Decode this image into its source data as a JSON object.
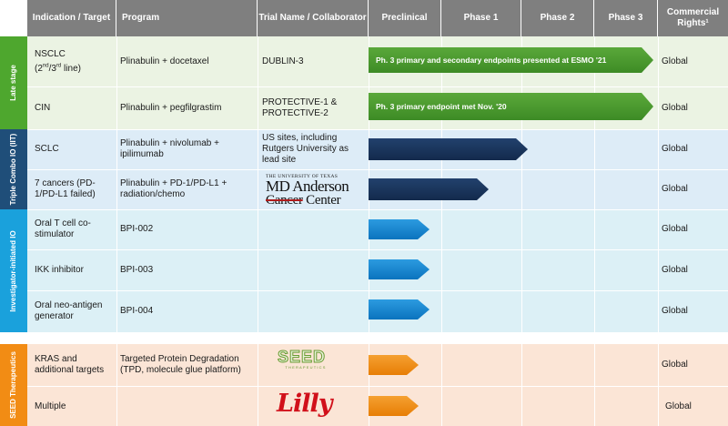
{
  "header": {
    "indication": "Indication / Target",
    "program": "Program",
    "trial": "Trial Name / Collaborator",
    "preclinical": "Preclinical",
    "phase1": "Phase 1",
    "phase2": "Phase 2",
    "phase3": "Phase 3",
    "rights": "Commercial Rights¹"
  },
  "groups": {
    "late": "Late stage",
    "triple": "Triple Combo IO (IIT)",
    "investigator": "Investigator-initiated IO",
    "seed": "SEED Therapeutics"
  },
  "rows": [
    {
      "indication": "NSCLC",
      "indication_sub": "(2nd/3rd line)",
      "program": "Plinabulin + docetaxel",
      "trial": "DUBLIN-3",
      "arrow": "Ph. 3 primary and secondary endpoints presented at ESMO '21",
      "rights": "Global"
    },
    {
      "indication": "CIN",
      "program": "Plinabulin + pegfilgrastim",
      "trial": "PROTECTIVE-1 & PROTECTIVE-2",
      "arrow": "Ph. 3 primary endpoint met Nov. '20",
      "rights": "Global"
    },
    {
      "indication": "SCLC",
      "program": "Plinabulin + nivolumab + ipilimumab",
      "trial": "US sites, including Rutgers University as lead site",
      "rights": "Global"
    },
    {
      "indication": "7 cancers (PD-1/PD-L1 failed)",
      "program": "Plinabulin + PD-1/PD-L1 + radiation/chemo",
      "rights": "Global"
    },
    {
      "indication": "Oral T cell co-stimulator",
      "program": "BPI-002",
      "rights": "Global"
    },
    {
      "indication": "IKK inhibitor",
      "program": "BPI-003",
      "rights": "Global"
    },
    {
      "indication": "Oral neo-antigen generator",
      "program": "BPI-004",
      "rights": "Global"
    },
    {
      "indication": "KRAS and additional targets",
      "program": "Targeted Protein Degradation (TPD, molecule glue platform)",
      "rights": "Global"
    },
    {
      "indication": "Multiple",
      "rights": "Global"
    }
  ],
  "logos": {
    "mda_small": "THE UNIVERSITY OF TEXAS",
    "mda_line1": "MD Anderson",
    "mda_line2a": "Cancer",
    "mda_line2b": " Center",
    "seed_word": "SEED",
    "seed_sub": "THERAPEUTICS",
    "lilly": "Lilly"
  },
  "progress": [
    {
      "row": 0,
      "stage_fraction": 0.98
    },
    {
      "row": 1,
      "stage_fraction": 0.98
    },
    {
      "row": 2,
      "stage_fraction": 0.44
    },
    {
      "row": 3,
      "stage_fraction": 0.34
    },
    {
      "row": 4,
      "stage_fraction": 0.17
    },
    {
      "row": 5,
      "stage_fraction": 0.17
    },
    {
      "row": 6,
      "stage_fraction": 0.17
    },
    {
      "row": 7,
      "stage_fraction": 0.14
    },
    {
      "row": 8,
      "stage_fraction": 0.14
    }
  ],
  "colors": {
    "header": "#7f7f7f",
    "late_band": "#4ea72e",
    "triple_band": "#1f4e79",
    "investigator_band": "#1aa1dc",
    "seed_band": "#f28c14",
    "late_bg": "#ebf3e3",
    "triple_bg": "#ddecf7",
    "investigator_bg": "#dcf0f6",
    "seed_bg": "#fbe5d6"
  }
}
